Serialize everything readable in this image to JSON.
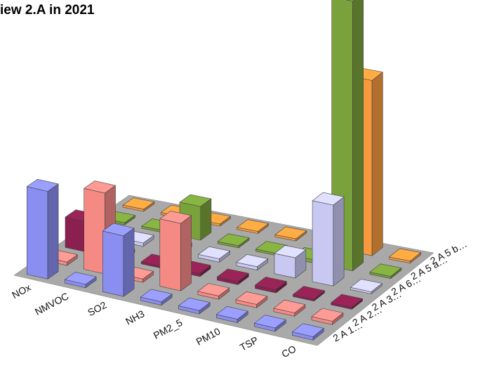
{
  "chart_data": {
    "type": "bar",
    "title": "iew 2.A in 2021",
    "x_categories": [
      "NOx",
      "NMVOC",
      "SO2",
      "NH3",
      "PM2_5",
      "PM10",
      "TSP",
      "CO"
    ],
    "y_categories": [
      "2 A 1…",
      "2 A 2…",
      "2 A 3…",
      "2 A 6…",
      "2 A 5 a…",
      "2 A 5 b…"
    ],
    "series": [
      {
        "name": "2 A 5 b…",
        "values": [
          0,
          0,
          0,
          0,
          0,
          0,
          0,
          0
        ]
      },
      {
        "name": "2 A 5 a…",
        "values": [
          0,
          0,
          0,
          0,
          0,
          0.05,
          0.05,
          0
        ]
      },
      {
        "name": "2 A 6…",
        "values": [
          0,
          0.05,
          0.5,
          0,
          0.06,
          0,
          0.02,
          0.03
        ]
      },
      {
        "name": "2 A 3…",
        "values": [
          0.05,
          0.05,
          0.05,
          0.05,
          0.05,
          0.05,
          0.05,
          0.05
        ]
      },
      {
        "name": "2 A 2…",
        "values": [
          0,
          0.02,
          0.05,
          0.02,
          0.02,
          0.02,
          0.02,
          0
        ]
      },
      {
        "name": "2 A 1…",
        "values": [
          0,
          0,
          0,
          0,
          0,
          0,
          0,
          0
        ]
      }
    ],
    "values_by_depth": [
      [
        0.02,
        0.02,
        0.02,
        0.02,
        0.02,
        0.02,
        2.6,
        0.02
      ],
      [
        0.02,
        0.02,
        0.5,
        0.02,
        0.02,
        0.05,
        4.0,
        0.02
      ],
      [
        0.02,
        0.05,
        0.05,
        0.05,
        0.05,
        0.3,
        1.2,
        0.02
      ],
      [
        0.45,
        0.05,
        0.02,
        0.05,
        0.05,
        0.05,
        0.02,
        0.02
      ],
      [
        0.05,
        1.2,
        0.05,
        1.0,
        0.05,
        0.05,
        0.05,
        0.05
      ],
      [
        1.3,
        0.05,
        0.9,
        0.05,
        0.05,
        0.05,
        0.05,
        0.05
      ]
    ],
    "colors_by_depth": [
      "#f79a3e",
      "#7aa23c",
      "#c8c8f2",
      "#8b1f4f",
      "#f58a85",
      "#8a8ef0"
    ],
    "ylim": [
      0,
      4.4
    ],
    "grid": false,
    "legend": "none"
  }
}
